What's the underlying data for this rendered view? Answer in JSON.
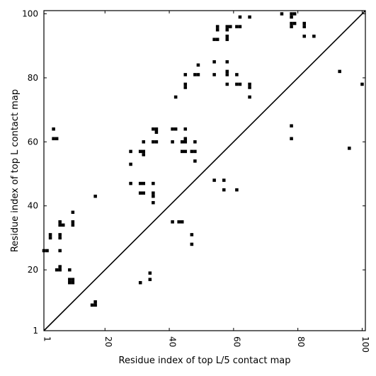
{
  "chart_data": {
    "type": "scatter",
    "xlabel": "Residue index of top L/5 contact map",
    "ylabel": "Residue index of top L contact map",
    "xlim": [
      1,
      101
    ],
    "ylim": [
      1,
      101
    ],
    "x_ticks": [
      1,
      20,
      40,
      60,
      80,
      100
    ],
    "y_ticks": [
      1,
      20,
      40,
      60,
      80,
      100
    ],
    "x_tick_labels": [
      "1",
      "20",
      "40",
      "60",
      "80",
      "100"
    ],
    "y_tick_labels": [
      "1",
      "20",
      "40",
      "60",
      "80",
      "100"
    ],
    "diagonal": true,
    "grid": false,
    "marker": "square",
    "color": "#000000",
    "lower_triangle_points": [
      [
        9,
        17
      ],
      [
        10,
        17
      ],
      [
        9,
        16
      ],
      [
        10,
        16
      ],
      [
        16,
        9
      ],
      [
        17,
        9
      ],
      [
        17,
        10
      ],
      [
        31,
        16
      ],
      [
        34,
        17
      ],
      [
        34,
        19
      ]
    ],
    "upper_triangle_points": [
      [
        1,
        26
      ],
      [
        2,
        26
      ],
      [
        3,
        30
      ],
      [
        3,
        31
      ],
      [
        4,
        61
      ],
      [
        4,
        64
      ],
      [
        5,
        61
      ],
      [
        5,
        20
      ],
      [
        6,
        20
      ],
      [
        6,
        21
      ],
      [
        6,
        26
      ],
      [
        6,
        30
      ],
      [
        6,
        31
      ],
      [
        6,
        34
      ],
      [
        6,
        35
      ],
      [
        7,
        34
      ],
      [
        9,
        20
      ],
      [
        10,
        34
      ],
      [
        10,
        35
      ],
      [
        10,
        38
      ],
      [
        17,
        43
      ],
      [
        28,
        47
      ],
      [
        28,
        53
      ],
      [
        28,
        57
      ],
      [
        31,
        44
      ],
      [
        31,
        47
      ],
      [
        31,
        57
      ],
      [
        32,
        44
      ],
      [
        32,
        47
      ],
      [
        32,
        56
      ],
      [
        32,
        57
      ],
      [
        32,
        60
      ],
      [
        35,
        41
      ],
      [
        35,
        43
      ],
      [
        35,
        44
      ],
      [
        35,
        47
      ],
      [
        35,
        60
      ],
      [
        35,
        64
      ],
      [
        36,
        60
      ],
      [
        36,
        63
      ],
      [
        36,
        64
      ],
      [
        41,
        35
      ],
      [
        41,
        60
      ],
      [
        41,
        64
      ],
      [
        42,
        64
      ],
      [
        42,
        74
      ],
      [
        43,
        35
      ],
      [
        44,
        35
      ],
      [
        44,
        57
      ],
      [
        44,
        60
      ],
      [
        45,
        57
      ],
      [
        45,
        60
      ],
      [
        45,
        61
      ],
      [
        45,
        64
      ],
      [
        45,
        77
      ],
      [
        45,
        78
      ],
      [
        45,
        81
      ],
      [
        47,
        28
      ],
      [
        47,
        31
      ],
      [
        47,
        57
      ],
      [
        48,
        54
      ],
      [
        48,
        57
      ],
      [
        48,
        60
      ],
      [
        48,
        81
      ],
      [
        49,
        81
      ],
      [
        49,
        84
      ],
      [
        54,
        48
      ],
      [
        54,
        81
      ],
      [
        54,
        85
      ],
      [
        54,
        92
      ],
      [
        55,
        92
      ],
      [
        55,
        95
      ],
      [
        55,
        96
      ],
      [
        57,
        45
      ],
      [
        57,
        48
      ],
      [
        58,
        78
      ],
      [
        58,
        81
      ],
      [
        58,
        82
      ],
      [
        58,
        85
      ],
      [
        58,
        92
      ],
      [
        58,
        93
      ],
      [
        58,
        95
      ],
      [
        58,
        96
      ],
      [
        59,
        96
      ],
      [
        61,
        45
      ],
      [
        61,
        78
      ],
      [
        61,
        81
      ],
      [
        61,
        96
      ],
      [
        62,
        78
      ],
      [
        62,
        96
      ],
      [
        62,
        99
      ],
      [
        65,
        74
      ],
      [
        65,
        77
      ],
      [
        65,
        78
      ],
      [
        65,
        99
      ],
      [
        75,
        100
      ],
      [
        78,
        61
      ],
      [
        78,
        65
      ],
      [
        78,
        96
      ],
      [
        78,
        97
      ],
      [
        78,
        99
      ],
      [
        78,
        100
      ],
      [
        79,
        97
      ],
      [
        79,
        100
      ],
      [
        82,
        93
      ],
      [
        82,
        96
      ],
      [
        82,
        97
      ],
      [
        85,
        93
      ],
      [
        93,
        82
      ],
      [
        96,
        58
      ],
      [
        100,
        78
      ]
    ]
  }
}
